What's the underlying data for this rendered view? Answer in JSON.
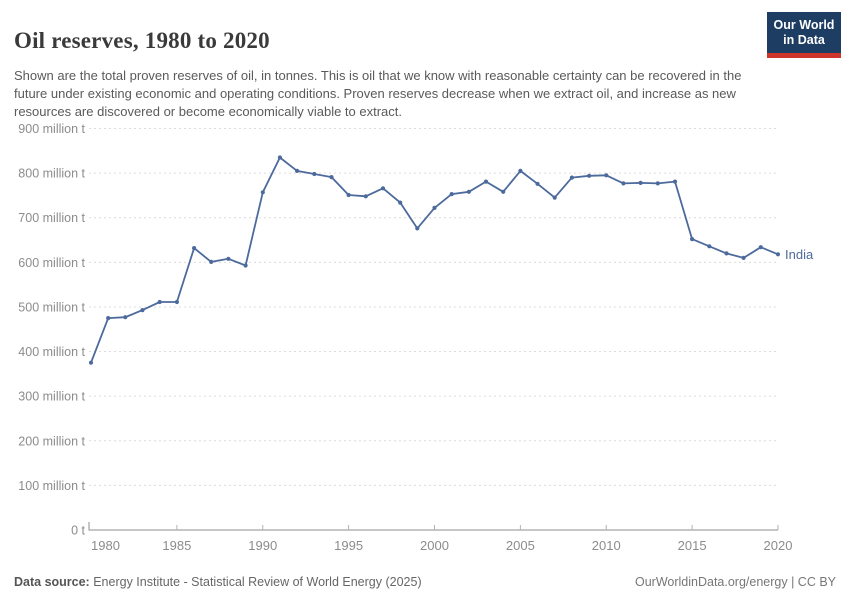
{
  "header": {
    "title": "Oil reserves, 1980 to 2020",
    "logo": {
      "line1": "Our World",
      "line2": "in Data"
    }
  },
  "subtitle": "Shown are the total proven reserves of oil, in tonnes. This is oil that we know with reasonable certainty can be recovered in the future under existing economic and operating conditions. Proven reserves decrease when we extract oil, and increase as new resources are discovered or become economically viable to extract.",
  "chart_data": {
    "type": "line",
    "title": "Oil reserves, 1980 to 2020",
    "x": [
      1980,
      1981,
      1982,
      1983,
      1984,
      1985,
      1986,
      1987,
      1988,
      1989,
      1990,
      1991,
      1992,
      1993,
      1994,
      1995,
      1996,
      1997,
      1998,
      1999,
      2000,
      2001,
      2002,
      2003,
      2004,
      2005,
      2006,
      2007,
      2008,
      2009,
      2010,
      2011,
      2012,
      2013,
      2014,
      2015,
      2016,
      2017,
      2018,
      2019,
      2020
    ],
    "series": [
      {
        "name": "India",
        "color": "#4c6a9c",
        "values": [
          375,
          475,
          477,
          493,
          511,
          511,
          632,
          601,
          608,
          593,
          757,
          835,
          805,
          798,
          791,
          751,
          748,
          766,
          734,
          676,
          722,
          753,
          758,
          781,
          758,
          805,
          776,
          745,
          790,
          794,
          795,
          777,
          778,
          777,
          781,
          652,
          636,
          620,
          610,
          634,
          618
        ]
      }
    ],
    "xlabel": "",
    "ylabel": "",
    "ylim": [
      0,
      900
    ],
    "xlim": [
      1980,
      2020
    ],
    "unit": "million t",
    "grid": "horizontal-dashed",
    "legend_position": "end-of-line",
    "y_ticks": [
      {
        "value": 0,
        "label": "0 t"
      },
      {
        "value": 100,
        "label": "100 million t"
      },
      {
        "value": 200,
        "label": "200 million t"
      },
      {
        "value": 300,
        "label": "300 million t"
      },
      {
        "value": 400,
        "label": "400 million t"
      },
      {
        "value": 500,
        "label": "500 million t"
      },
      {
        "value": 600,
        "label": "600 million t"
      },
      {
        "value": 700,
        "label": "700 million t"
      },
      {
        "value": 800,
        "label": "800 million t"
      },
      {
        "value": 900,
        "label": "900 million t"
      }
    ],
    "x_ticks": [
      1980,
      1985,
      1990,
      1995,
      2000,
      2005,
      2010,
      2015,
      2020
    ]
  },
  "footer": {
    "source_label": "Data source:",
    "source_text": "Energy Institute - Statistical Review of World Energy (2025)",
    "credit": "OurWorldinData.org/energy | CC BY"
  },
  "colors": {
    "line": "#4c6a9c",
    "grid": "#dcdcdc",
    "axis": "#8f8f8f",
    "tick_label": "#8c8c8c",
    "logo_bg": "#1d3d63",
    "logo_red": "#d0352c"
  }
}
